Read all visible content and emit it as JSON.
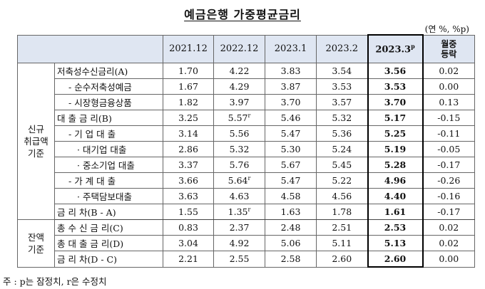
{
  "title": "예금은행 가중평균금리",
  "unit": "(연 %, %p)",
  "columns": {
    "c1": "2021.12",
    "c2": "2022.12",
    "c3": "2023.1",
    "c4": "2023.2",
    "c5": "2023.3",
    "c5_sup": "p",
    "chg_line1": "월중",
    "chg_line2": "등락"
  },
  "groups": {
    "new_line1": "신규",
    "new_line2": "취급액",
    "new_line3": "기준",
    "bal_line1": "잔액",
    "bal_line2": "기준"
  },
  "rows": [
    {
      "label": "저축성수신금리(A)",
      "v1": "1.70",
      "v2": "4.22",
      "v2_sup": "",
      "v3": "3.83",
      "v4": "3.54",
      "v5": "3.56",
      "chg": "0.02"
    },
    {
      "label": "- 순수저축성예금",
      "v1": "1.67",
      "v2": "4.29",
      "v2_sup": "",
      "v3": "3.87",
      "v4": "3.53",
      "v5": "3.53",
      "chg": "0.00"
    },
    {
      "label": "- 시장형금융상품",
      "v1": "1.82",
      "v2": "3.97",
      "v2_sup": "",
      "v3": "3.70",
      "v4": "3.57",
      "v5": "3.70",
      "chg": "0.13"
    },
    {
      "label": "대 출 금 리(B)",
      "v1": "3.25",
      "v2": "5.57",
      "v2_sup": "r",
      "v3": "5.46",
      "v4": "5.32",
      "v5": "5.17",
      "chg": "-0.15"
    },
    {
      "label": "- 기 업 대 출",
      "v1": "3.14",
      "v2": "5.56",
      "v2_sup": "",
      "v3": "5.47",
      "v4": "5.36",
      "v5": "5.25",
      "chg": "-0.11"
    },
    {
      "label": "· 대기업 대출",
      "v1": "2.86",
      "v2": "5.32",
      "v2_sup": "",
      "v3": "5.30",
      "v4": "5.24",
      "v5": "5.19",
      "chg": "-0.05"
    },
    {
      "label": "· 중소기업 대출",
      "v1": "3.37",
      "v2": "5.76",
      "v2_sup": "",
      "v3": "5.67",
      "v4": "5.45",
      "v5": "5.28",
      "chg": "-0.17"
    },
    {
      "label": "- 가 계 대 출",
      "v1": "3.66",
      "v2": "5.64",
      "v2_sup": "r",
      "v3": "5.47",
      "v4": "5.22",
      "v5": "4.96",
      "chg": "-0.26"
    },
    {
      "label": "· 주택담보대출",
      "v1": "3.63",
      "v2": "4.63",
      "v2_sup": "",
      "v3": "4.58",
      "v4": "4.56",
      "v5": "4.40",
      "chg": "-0.16"
    },
    {
      "label": "금 리 차(B - A)",
      "v1": "1.55",
      "v2": "1.35",
      "v2_sup": "r",
      "v3": "1.63",
      "v4": "1.78",
      "v5": "1.61",
      "chg": "-0.17"
    },
    {
      "label": "총 수 신 금 리(C)",
      "v1": "0.83",
      "v2": "2.37",
      "v2_sup": "",
      "v3": "2.48",
      "v4": "2.51",
      "v5": "2.53",
      "chg": "0.02"
    },
    {
      "label": "총 대 출 금 리(D)",
      "v1": "3.04",
      "v2": "4.92",
      "v2_sup": "",
      "v3": "5.06",
      "v4": "5.11",
      "v5": "5.13",
      "chg": "0.02"
    },
    {
      "label": "금 리 차(D - C)",
      "v1": "2.21",
      "v2": "2.55",
      "v2_sup": "",
      "v3": "2.58",
      "v4": "2.60",
      "v5": "2.60",
      "chg": "0.00"
    }
  ],
  "note": "주 : p는 잠정치, r은 수정치"
}
